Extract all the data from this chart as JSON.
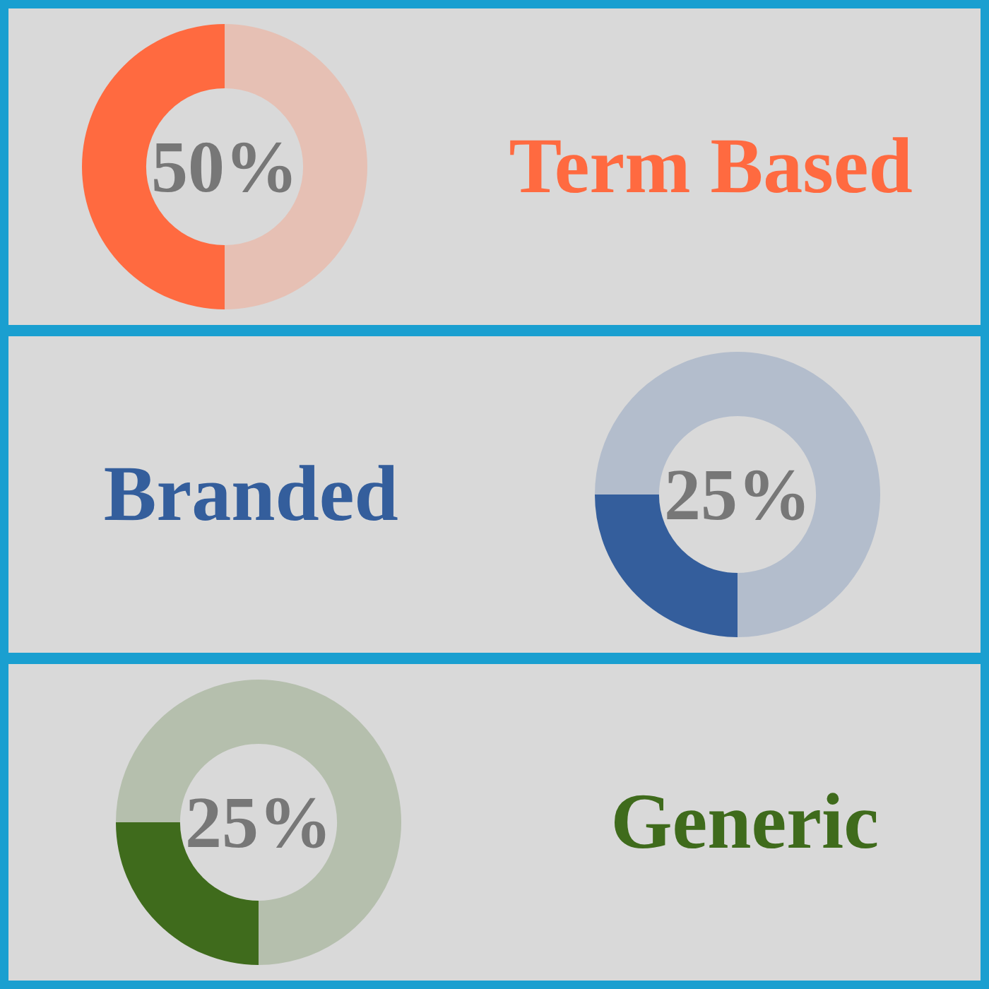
{
  "chart_data": [
    {
      "type": "donut",
      "title": "Term Based",
      "categories": [
        null,
        null
      ],
      "values": [
        50,
        50
      ],
      "colors": [
        "#ff6a40",
        "#e6c0b4"
      ],
      "value_labels": [
        "50%",
        null
      ]
    },
    {
      "type": "donut",
      "title": "Branded",
      "categories": [
        null,
        null
      ],
      "values": [
        25,
        75
      ],
      "colors": [
        "#345e9c",
        "#b3bdcc"
      ],
      "value_labels": [
        "25%",
        null
      ]
    },
    {
      "type": "donut",
      "title": "Generic",
      "categories": [
        null,
        null
      ],
      "values": [
        25,
        75
      ],
      "colors": [
        "#3f6b1c",
        "#b5bfad"
      ],
      "value_labels": [
        "25%",
        null
      ]
    }
  ]
}
